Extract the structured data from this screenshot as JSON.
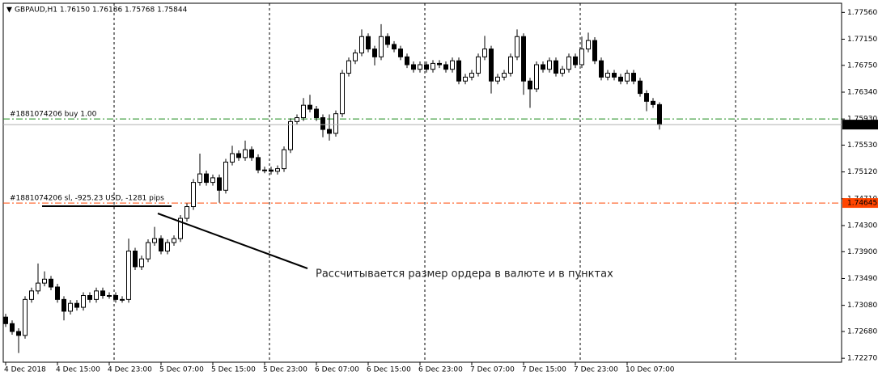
{
  "chart_data": {
    "type": "candlestick",
    "title": "GBPAUD,H1 1.76150 1.76186 1.75768 1.75844",
    "categories": [
      "4 Dec 2018",
      null,
      null,
      null,
      null,
      null,
      null,
      null,
      "4 Dec 15:00",
      null,
      null,
      null,
      null,
      null,
      null,
      null,
      "4 Dec 23:00",
      null,
      null,
      null,
      null,
      null,
      null,
      null,
      "5 Dec 07:00",
      null,
      null,
      null,
      null,
      null,
      null,
      null,
      "5 Dec 15:00",
      null,
      null,
      null,
      null,
      null,
      null,
      null,
      "5 Dec 23:00",
      null,
      null,
      null,
      null,
      null,
      null,
      null,
      "6 Dec 07:00",
      null,
      null,
      null,
      null,
      null,
      null,
      null,
      "6 Dec 15:00",
      null,
      null,
      null,
      null,
      null,
      null,
      null,
      "6 Dec 23:00",
      null,
      null,
      null,
      null,
      null,
      null,
      null,
      "7 Dec 07:00",
      null,
      null,
      null,
      null,
      null,
      null,
      null,
      "7 Dec 15:00",
      null,
      null,
      null,
      null,
      null,
      null,
      null,
      "7 Dec 23:00",
      null,
      null,
      null,
      null,
      null,
      null,
      null,
      "10 Dec 07:00",
      null,
      null,
      null,
      null,
      null
    ],
    "open": [
      1.729,
      1.728,
      1.7268,
      1.7262,
      1.7317,
      1.733,
      1.7342,
      1.7348,
      1.7336,
      1.7317,
      1.7299,
      1.7311,
      1.7305,
      1.7323,
      1.7317,
      1.733,
      1.7323,
      1.7323,
      1.7317,
      1.7317,
      1.7391,
      1.7367,
      1.7379,
      1.7404,
      1.741,
      1.7391,
      1.7404,
      1.741,
      1.7441,
      1.7459,
      1.7496,
      1.7509,
      1.7496,
      1.7503,
      1.7484,
      1.7527,
      1.754,
      1.7534,
      1.7546,
      1.7534,
      1.7515,
      1.7515,
      1.7513,
      1.7517,
      1.7546,
      1.7589,
      1.7595,
      1.7614,
      1.7608,
      1.7595,
      1.7577,
      1.7571,
      1.7601,
      1.7663,
      1.7682,
      1.7694,
      1.7719,
      1.77,
      1.7688,
      1.7719,
      1.7707,
      1.77,
      1.7688,
      1.7676,
      1.7669,
      1.7676,
      1.7669,
      1.7678,
      1.7676,
      1.7669,
      1.7682,
      1.7651,
      1.7657,
      1.7663,
      1.7688,
      1.77,
      1.7651,
      1.7657,
      1.7663,
      1.7688,
      1.7719,
      1.7651,
      1.7639,
      1.7676,
      1.7669,
      1.7682,
      1.7663,
      1.7669,
      1.7688,
      1.7676,
      1.77,
      1.7713,
      1.7682,
      1.7657,
      1.7663,
      1.7657,
      1.7651,
      1.7663,
      1.7651,
      1.7632,
      1.762,
      1.7615
    ],
    "high": [
      1.7295,
      1.7285,
      1.7273,
      1.7322,
      1.7335,
      1.7372,
      1.736,
      1.7353,
      1.7341,
      1.7322,
      1.7316,
      1.7316,
      1.7328,
      1.7328,
      1.7335,
      1.7335,
      1.7328,
      1.7328,
      1.7322,
      1.741,
      1.7396,
      1.7384,
      1.7409,
      1.7428,
      1.7415,
      1.7409,
      1.7415,
      1.7446,
      1.7464,
      1.7501,
      1.754,
      1.7514,
      1.7508,
      1.7508,
      1.7532,
      1.7552,
      1.7545,
      1.756,
      1.7551,
      1.7539,
      1.752,
      1.752,
      1.7522,
      1.7551,
      1.7594,
      1.76,
      1.7625,
      1.763,
      1.7613,
      1.76,
      1.76,
      1.7606,
      1.7668,
      1.7687,
      1.7699,
      1.773,
      1.7724,
      1.7705,
      1.7738,
      1.7724,
      1.7712,
      1.7705,
      1.7693,
      1.7681,
      1.7681,
      1.7681,
      1.7683,
      1.7683,
      1.7681,
      1.7687,
      1.7687,
      1.7662,
      1.7668,
      1.7693,
      1.772,
      1.7705,
      1.7662,
      1.7668,
      1.7693,
      1.773,
      1.7724,
      1.7656,
      1.7681,
      1.7681,
      1.7687,
      1.7687,
      1.7674,
      1.7693,
      1.7693,
      1.7719,
      1.7725,
      1.7718,
      1.7687,
      1.7668,
      1.7668,
      1.7662,
      1.7668,
      1.7668,
      1.7656,
      1.7637,
      1.7625,
      1.76186
    ],
    "low": [
      1.7275,
      1.7263,
      1.7235,
      1.7257,
      1.7312,
      1.7325,
      1.7337,
      1.7331,
      1.7312,
      1.7285,
      1.7294,
      1.73,
      1.73,
      1.7312,
      1.7312,
      1.7318,
      1.7318,
      1.7312,
      1.7312,
      1.7312,
      1.7362,
      1.7362,
      1.7374,
      1.7399,
      1.7386,
      1.7386,
      1.7399,
      1.7405,
      1.7436,
      1.7454,
      1.7491,
      1.7491,
      1.7491,
      1.7465,
      1.7479,
      1.7522,
      1.7529,
      1.7529,
      1.7529,
      1.751,
      1.751,
      1.7508,
      1.7508,
      1.7512,
      1.7541,
      1.7584,
      1.759,
      1.7603,
      1.759,
      1.7565,
      1.756,
      1.7566,
      1.7596,
      1.7658,
      1.7677,
      1.7689,
      1.7695,
      1.7675,
      1.7683,
      1.7702,
      1.7695,
      1.7683,
      1.7671,
      1.7664,
      1.7664,
      1.7664,
      1.7664,
      1.7671,
      1.7664,
      1.7664,
      1.7646,
      1.7646,
      1.7652,
      1.7658,
      1.7683,
      1.7632,
      1.7646,
      1.7652,
      1.7658,
      1.7683,
      1.763,
      1.761,
      1.7634,
      1.7664,
      1.7664,
      1.7658,
      1.7658,
      1.7664,
      1.7671,
      1.7671,
      1.7695,
      1.7677,
      1.7652,
      1.7652,
      1.7652,
      1.7646,
      1.7646,
      1.7646,
      1.7627,
      1.7605,
      1.761,
      1.75768
    ],
    "close": [
      1.728,
      1.7268,
      1.7262,
      1.7317,
      1.733,
      1.7342,
      1.7348,
      1.7336,
      1.7317,
      1.7299,
      1.7311,
      1.7305,
      1.7323,
      1.7317,
      1.733,
      1.7323,
      1.7323,
      1.7317,
      1.7317,
      1.7391,
      1.7367,
      1.7379,
      1.7404,
      1.741,
      1.7391,
      1.7404,
      1.741,
      1.7441,
      1.7459,
      1.7496,
      1.7509,
      1.7496,
      1.7503,
      1.7484,
      1.7527,
      1.754,
      1.7534,
      1.7546,
      1.7534,
      1.7515,
      1.7515,
      1.7513,
      1.7517,
      1.7546,
      1.7589,
      1.7595,
      1.7614,
      1.7608,
      1.7595,
      1.7577,
      1.7571,
      1.7601,
      1.7663,
      1.7682,
      1.7694,
      1.7719,
      1.77,
      1.7688,
      1.7719,
      1.7707,
      1.77,
      1.7688,
      1.7676,
      1.7669,
      1.7676,
      1.7669,
      1.7678,
      1.7676,
      1.7669,
      1.7682,
      1.7651,
      1.7657,
      1.7663,
      1.7688,
      1.77,
      1.7651,
      1.7657,
      1.7663,
      1.7688,
      1.7719,
      1.7651,
      1.7639,
      1.7676,
      1.7669,
      1.7682,
      1.7663,
      1.7669,
      1.7688,
      1.7676,
      1.77,
      1.7713,
      1.7682,
      1.7657,
      1.7663,
      1.7657,
      1.7651,
      1.7663,
      1.7651,
      1.7632,
      1.762,
      1.7615,
      1.75844
    ],
    "up_color": "#ffffff",
    "down_color": "#000000",
    "ylim": [
      1.7221,
      1.777
    ],
    "yticks": [
      {
        "value": 1.7756,
        "label": "1.77560"
      },
      {
        "value": 1.7715,
        "label": "1.77150"
      },
      {
        "value": 1.7675,
        "label": "1.76750"
      },
      {
        "value": 1.7634,
        "label": "1.76340"
      },
      {
        "value": 1.7593,
        "label": "1.75930"
      },
      {
        "value": 1.7553,
        "label": "1.75530"
      },
      {
        "value": 1.7512,
        "label": "1.75120"
      },
      {
        "value": 1.7471,
        "label": "1.74710"
      },
      {
        "value": 1.743,
        "label": "1.74300"
      },
      {
        "value": 1.739,
        "label": "1.73900"
      },
      {
        "value": 1.7349,
        "label": "1.73490"
      },
      {
        "value": 1.7308,
        "label": "1.73080"
      },
      {
        "value": 1.7268,
        "label": "1.72680"
      },
      {
        "value": 1.7227,
        "label": "1.72270"
      }
    ],
    "orders": [
      {
        "label": "#1881074206 buy 1.00",
        "price": 1.7593,
        "color": "#1a8a1a"
      },
      {
        "label": "#1881074206 sl, -925.23 USD, -1281 pips",
        "price": 1.74645,
        "color": "#ff4500"
      }
    ],
    "annotation": "Рассчитывается размер ордера в валюте и в пунктах"
  }
}
